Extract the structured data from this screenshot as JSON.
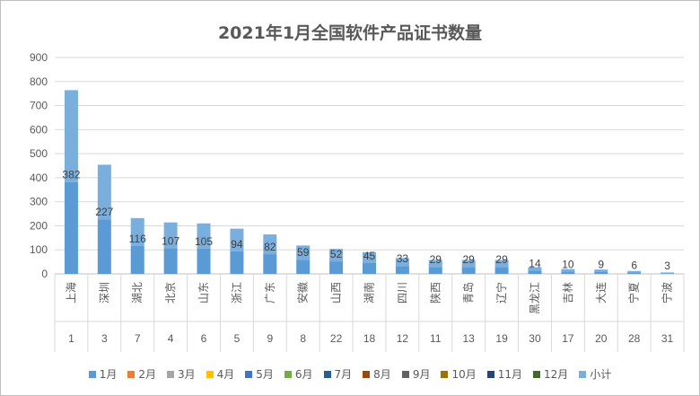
{
  "chart_data": {
    "type": "bar",
    "title": "2021年1月全国软件产品证书数量",
    "categories": [
      "上海",
      "深圳",
      "湖北",
      "北京",
      "山东",
      "浙江",
      "广东",
      "安徽",
      "山西",
      "湖南",
      "四川",
      "陕西",
      "青岛",
      "辽宁",
      "黑龙江",
      "吉林",
      "大连",
      "宁夏",
      "宁波"
    ],
    "ranks": [
      "1",
      "3",
      "7",
      "4",
      "6",
      "5",
      "9",
      "8",
      "22",
      "18",
      "12",
      "11",
      "13",
      "19",
      "30",
      "17",
      "20",
      "28",
      "31"
    ],
    "ylim": [
      0,
      900
    ],
    "yticks": [
      0,
      100,
      200,
      300,
      400,
      500,
      600,
      700,
      800,
      900
    ],
    "grid": true,
    "legend_position": "bottom",
    "series": [
      {
        "name": "1月",
        "color": "#5b9bd5",
        "values": [
          382,
          227,
          116,
          107,
          105,
          94,
          82,
          59,
          52,
          45,
          33,
          29,
          29,
          29,
          14,
          10,
          9,
          6,
          3
        ]
      },
      {
        "name": "2月",
        "color": "#ed7d31",
        "values": [
          0,
          0,
          0,
          0,
          0,
          0,
          0,
          0,
          0,
          0,
          0,
          0,
          0,
          0,
          0,
          0,
          0,
          0,
          0
        ]
      },
      {
        "name": "3月",
        "color": "#a5a5a5",
        "values": [
          0,
          0,
          0,
          0,
          0,
          0,
          0,
          0,
          0,
          0,
          0,
          0,
          0,
          0,
          0,
          0,
          0,
          0,
          0
        ]
      },
      {
        "name": "4月",
        "color": "#ffc000",
        "values": [
          0,
          0,
          0,
          0,
          0,
          0,
          0,
          0,
          0,
          0,
          0,
          0,
          0,
          0,
          0,
          0,
          0,
          0,
          0
        ]
      },
      {
        "name": "5月",
        "color": "#4472c4",
        "values": [
          0,
          0,
          0,
          0,
          0,
          0,
          0,
          0,
          0,
          0,
          0,
          0,
          0,
          0,
          0,
          0,
          0,
          0,
          0
        ]
      },
      {
        "name": "6月",
        "color": "#70ad47",
        "values": [
          0,
          0,
          0,
          0,
          0,
          0,
          0,
          0,
          0,
          0,
          0,
          0,
          0,
          0,
          0,
          0,
          0,
          0,
          0
        ]
      },
      {
        "name": "7月",
        "color": "#255e91",
        "values": [
          0,
          0,
          0,
          0,
          0,
          0,
          0,
          0,
          0,
          0,
          0,
          0,
          0,
          0,
          0,
          0,
          0,
          0,
          0
        ]
      },
      {
        "name": "8月",
        "color": "#9e480e",
        "values": [
          0,
          0,
          0,
          0,
          0,
          0,
          0,
          0,
          0,
          0,
          0,
          0,
          0,
          0,
          0,
          0,
          0,
          0,
          0
        ]
      },
      {
        "name": "9月",
        "color": "#636363",
        "values": [
          0,
          0,
          0,
          0,
          0,
          0,
          0,
          0,
          0,
          0,
          0,
          0,
          0,
          0,
          0,
          0,
          0,
          0,
          0
        ]
      },
      {
        "name": "10月",
        "color": "#997300",
        "values": [
          0,
          0,
          0,
          0,
          0,
          0,
          0,
          0,
          0,
          0,
          0,
          0,
          0,
          0,
          0,
          0,
          0,
          0,
          0
        ]
      },
      {
        "name": "11月",
        "color": "#264478",
        "values": [
          0,
          0,
          0,
          0,
          0,
          0,
          0,
          0,
          0,
          0,
          0,
          0,
          0,
          0,
          0,
          0,
          0,
          0,
          0
        ]
      },
      {
        "name": "12月",
        "color": "#43682b",
        "values": [
          0,
          0,
          0,
          0,
          0,
          0,
          0,
          0,
          0,
          0,
          0,
          0,
          0,
          0,
          0,
          0,
          0,
          0,
          0
        ]
      },
      {
        "name": "小计",
        "color": "#7aaedc",
        "values": [
          382,
          227,
          116,
          107,
          105,
          94,
          82,
          59,
          52,
          45,
          33,
          29,
          29,
          29,
          14,
          10,
          9,
          6,
          3
        ]
      }
    ],
    "data_labels": [
      "382",
      "227",
      "116",
      "107",
      "105",
      "94",
      "82",
      "59",
      "52",
      "45",
      "33",
      "29",
      "29",
      "29",
      "14",
      "10",
      "9",
      "6",
      "3"
    ]
  }
}
